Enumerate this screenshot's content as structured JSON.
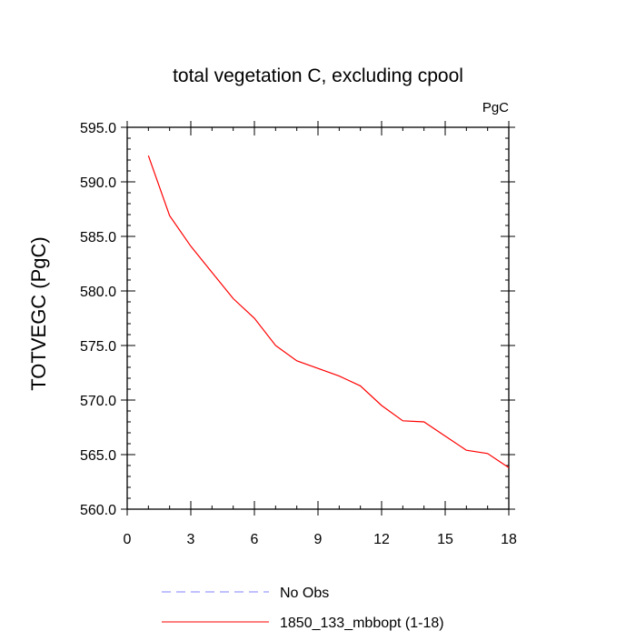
{
  "chart_data": {
    "type": "line",
    "title": "total vegetation C, excluding cpool",
    "units_label": "PgC",
    "xlabel": "",
    "ylabel": "TOTVEGC  (PgC)",
    "xlim": [
      0,
      18
    ],
    "ylim": [
      560.0,
      595.0
    ],
    "x_ticks": [
      "0",
      "3",
      "6",
      "9",
      "12",
      "15",
      "18"
    ],
    "y_ticks": [
      "560.0",
      "565.0",
      "570.0",
      "575.0",
      "580.0",
      "585.0",
      "590.0",
      "595.0"
    ],
    "grid": false,
    "legend_position": "bottom",
    "series": [
      {
        "name": "1850_133_mbbopt (1-18)",
        "color": "#ff0000",
        "style": "solid",
        "x": [
          1,
          2,
          3,
          4,
          5,
          6,
          7,
          8,
          9,
          10,
          11,
          12,
          13,
          14,
          15,
          16,
          17,
          18
        ],
        "values": [
          592.4,
          586.9,
          584.1,
          581.7,
          579.3,
          577.5,
          575.0,
          573.6,
          572.9,
          572.2,
          571.3,
          569.5,
          568.1,
          568.0,
          566.7,
          565.4,
          565.1,
          563.8
        ]
      }
    ],
    "legend": [
      {
        "label": "No Obs",
        "color": "#8080ff",
        "style": "dashed"
      },
      {
        "label": "1850_133_mbbopt (1-18)",
        "color": "#ff0000",
        "style": "solid"
      }
    ]
  }
}
